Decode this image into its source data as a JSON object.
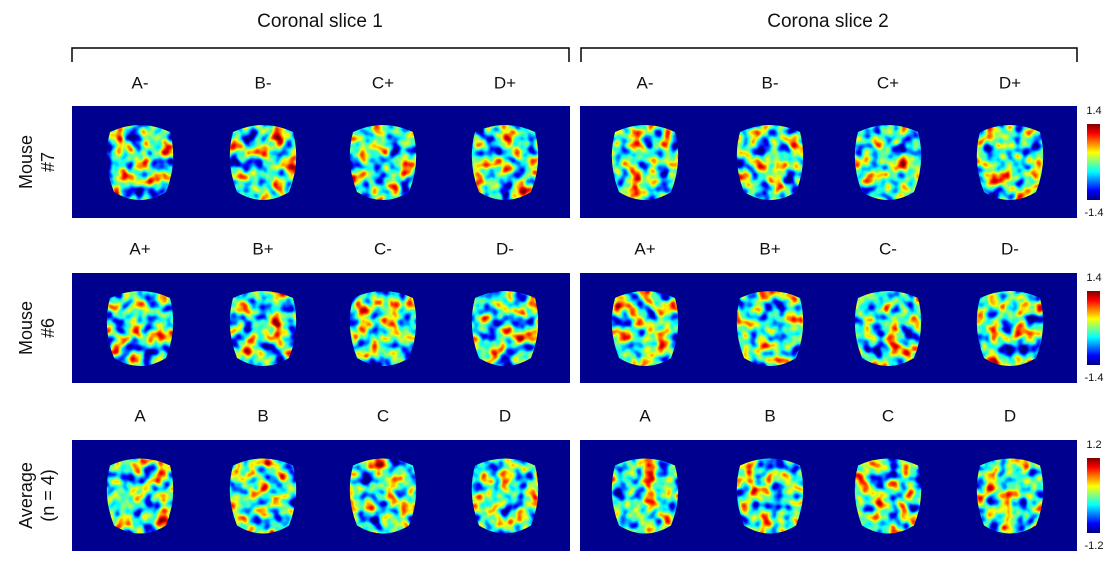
{
  "column_groups": [
    "Coronal slice 1",
    "Corona slice 2"
  ],
  "rows": [
    {
      "label": [
        "Mouse",
        "#7"
      ],
      "left_labels": [
        "A-",
        "B-",
        "C+",
        "D+"
      ],
      "right_labels": [
        "A-",
        "B-",
        "C+",
        "D+"
      ],
      "colorbar": {
        "max": 1.4,
        "min": -1.4
      }
    },
    {
      "label": [
        "Mouse",
        "#6"
      ],
      "left_labels": [
        "A+",
        "B+",
        "C-",
        "D-"
      ],
      "right_labels": [
        "A+",
        "B+",
        "C-",
        "D-"
      ],
      "colorbar": {
        "max": 1.4,
        "min": -1.4
      }
    },
    {
      "label": [
        "Average",
        "(n = 4)"
      ],
      "left_labels": [
        "A",
        "B",
        "C",
        "D"
      ],
      "right_labels": [
        "A",
        "B",
        "C",
        "D"
      ],
      "colorbar": {
        "max": 1.2,
        "min": -1.2
      }
    }
  ]
}
